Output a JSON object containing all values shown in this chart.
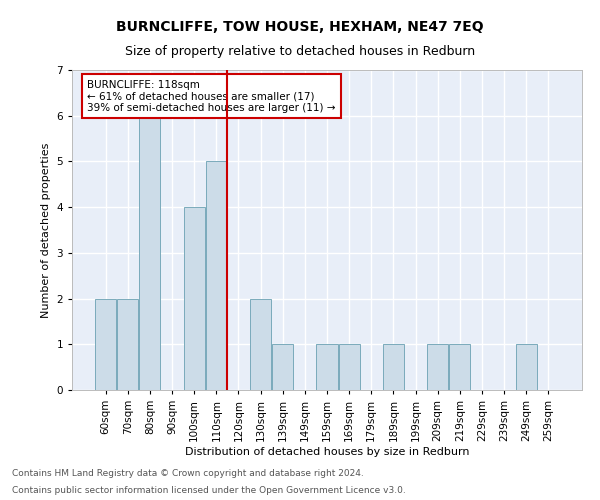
{
  "title": "BURNCLIFFE, TOW HOUSE, HEXHAM, NE47 7EQ",
  "subtitle": "Size of property relative to detached houses in Redburn",
  "xlabel": "Distribution of detached houses by size in Redburn",
  "ylabel": "Number of detached properties",
  "footnote1": "Contains HM Land Registry data © Crown copyright and database right 2024.",
  "footnote2": "Contains public sector information licensed under the Open Government Licence v3.0.",
  "categories": [
    "60sqm",
    "70sqm",
    "80sqm",
    "90sqm",
    "100sqm",
    "110sqm",
    "120sqm",
    "130sqm",
    "139sqm",
    "149sqm",
    "159sqm",
    "169sqm",
    "179sqm",
    "189sqm",
    "199sqm",
    "209sqm",
    "219sqm",
    "229sqm",
    "239sqm",
    "249sqm",
    "259sqm"
  ],
  "values": [
    2,
    2,
    6,
    0,
    4,
    5,
    0,
    2,
    1,
    0,
    1,
    1,
    0,
    1,
    0,
    1,
    1,
    0,
    0,
    1,
    0
  ],
  "bar_color": "#ccdce8",
  "bar_edge_color": "#7aaabb",
  "vline_color": "#cc0000",
  "vline_pos": 5.5,
  "annotation_box_text": "BURNCLIFFE: 118sqm\n← 61% of detached houses are smaller (17)\n39% of semi-detached houses are larger (11) →",
  "ylim": [
    0,
    7
  ],
  "yticks": [
    0,
    1,
    2,
    3,
    4,
    5,
    6,
    7
  ],
  "background_color": "#e8eef8",
  "grid_color": "#ffffff",
  "title_fontsize": 10,
  "subtitle_fontsize": 9,
  "axis_label_fontsize": 8,
  "tick_fontsize": 7.5,
  "annotation_fontsize": 7.5,
  "footnote_fontsize": 6.5
}
